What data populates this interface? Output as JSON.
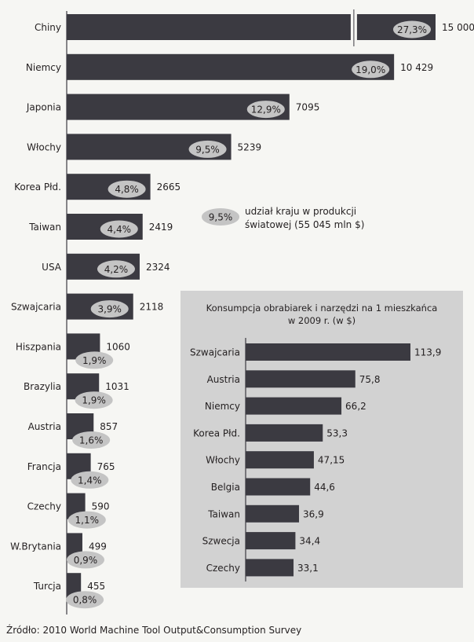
{
  "source": "Źródło: 2010 World Machine Tool Output&Consumption Survey",
  "legend": {
    "sample_value": "9,5%",
    "text_line1": "udział kraju w produkcji",
    "text_line2": "światowej (55 045 mln $)"
  },
  "colors": {
    "bar": "#3b3a41",
    "pill": "#c4c4c4",
    "inset_bg": "#d2d2d2",
    "background": "#f6f6f3",
    "text": "#231f20"
  },
  "chart_data": [
    {
      "type": "bar",
      "orientation": "horizontal",
      "axis_break": true,
      "categories": [
        "Chiny",
        "Niemcy",
        "Japonia",
        "Włochy",
        "Korea Płd.",
        "Taiwan",
        "USA",
        "Szwajcaria",
        "Hiszpania",
        "Brazylia",
        "Austria",
        "Francja",
        "Czechy",
        "W.Brytania",
        "Turcja"
      ],
      "values": [
        15000,
        10429,
        7095,
        5239,
        2665,
        2419,
        2324,
        2118,
        1060,
        1031,
        857,
        765,
        590,
        499,
        455
      ],
      "value_labels": [
        "15 000",
        "10 429",
        "7095",
        "5239",
        "2665",
        "2419",
        "2324",
        "2118",
        "1060",
        "1031",
        "857",
        "765",
        "590",
        "499",
        "455"
      ],
      "shares": [
        "27,3%",
        "19,0%",
        "12,9%",
        "9,5%",
        "4,8%",
        "4,4%",
        "4,2%",
        "3,9%",
        "1,9%",
        "1,9%",
        "1,6%",
        "1,4%",
        "1,1%",
        "0,9%",
        "0,8%"
      ]
    },
    {
      "type": "bar",
      "orientation": "horizontal",
      "title_line1": "Konsumpcja obrabiarek i narzędzi na 1 mieszkańca",
      "title_line2": "w 2009 r. (w $)",
      "categories": [
        "Szwajcaria",
        "Austria",
        "Niemcy",
        "Korea Płd.",
        "Włochy",
        "Belgia",
        "Taiwan",
        "Szwecja",
        "Czechy"
      ],
      "values": [
        113.9,
        75.8,
        66.2,
        53.3,
        47.15,
        44.6,
        36.9,
        34.4,
        33.1
      ],
      "value_labels": [
        "113,9",
        "75,8",
        "66,2",
        "53,3",
        "47,15",
        "44,6",
        "36,9",
        "34,4",
        "33,1"
      ]
    }
  ]
}
